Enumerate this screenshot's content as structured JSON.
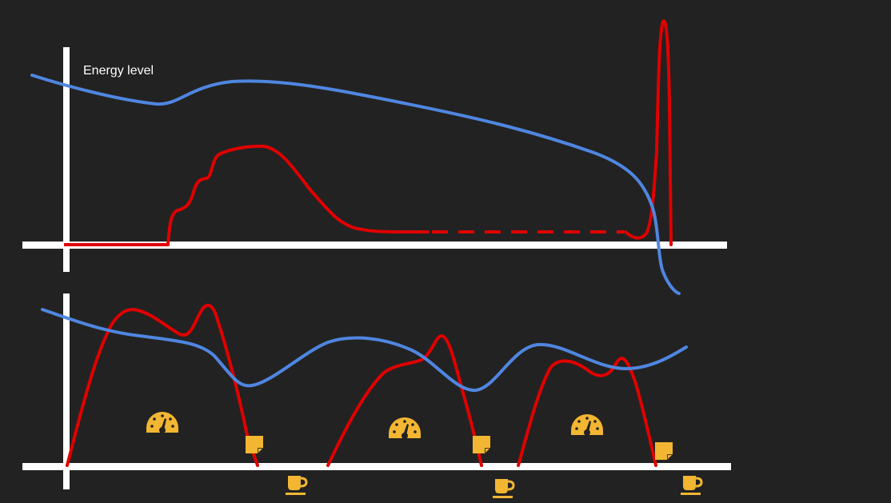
{
  "diagram": {
    "energy_label": "Energy level",
    "colors": {
      "background": "#222222",
      "axis": "#ffffff",
      "blue_curve": "#4f86e0",
      "red_curve": "#e00000",
      "icon": "#f2b632",
      "icon_dark": "#222222"
    },
    "top_panel": {
      "curves": [
        "blue-energy-curve",
        "red-activity-curve",
        "red-dashed-segment",
        "red-spike-curve"
      ]
    },
    "bottom_panel": {
      "gauge_icons": [
        "speedometer-icon",
        "speedometer-icon",
        "speedometer-icon"
      ],
      "note_icons": [
        "sticky-note-icon",
        "sticky-note-icon",
        "sticky-note-icon"
      ],
      "coffee_icons": [
        "coffee-cup-icon",
        "coffee-cup-icon",
        "coffee-cup-icon"
      ]
    }
  }
}
